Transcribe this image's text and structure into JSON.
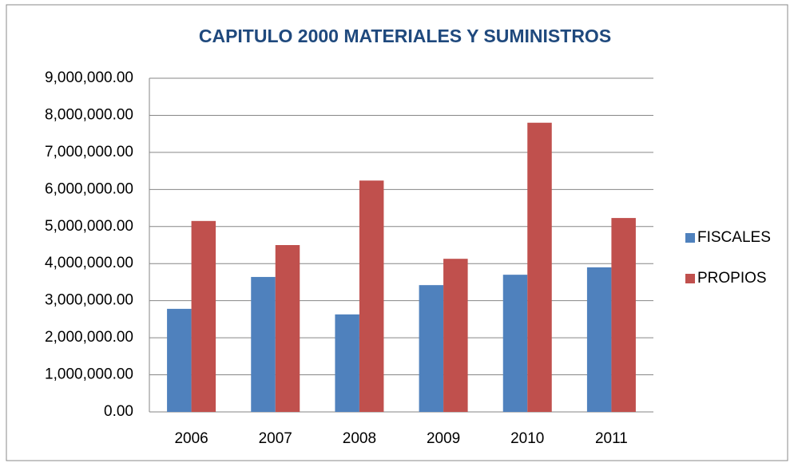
{
  "chart_data": {
    "type": "bar",
    "title": "CAPITULO 2000 MATERIALES Y SUMINISTROS",
    "categories": [
      "2006",
      "2007",
      "2008",
      "2009",
      "2010",
      "2011"
    ],
    "series": [
      {
        "name": "FISCALES",
        "color": "#4f81bd",
        "values": [
          2780000,
          3640000,
          2630000,
          3420000,
          3700000,
          3900000
        ]
      },
      {
        "name": "PROPIOS",
        "color": "#c0504d",
        "values": [
          5150000,
          4500000,
          6240000,
          4130000,
          7800000,
          5230000
        ]
      }
    ],
    "ylim": [
      0,
      9000000
    ],
    "yticks": [
      {
        "value": 0,
        "label": "0.00"
      },
      {
        "value": 1000000,
        "label": "1,000,000.00"
      },
      {
        "value": 2000000,
        "label": "2,000,000.00"
      },
      {
        "value": 3000000,
        "label": "3,000,000.00"
      },
      {
        "value": 4000000,
        "label": "4,000,000.00"
      },
      {
        "value": 5000000,
        "label": "5,000,000.00"
      },
      {
        "value": 6000000,
        "label": "6,000,000.00"
      },
      {
        "value": 7000000,
        "label": "7,000,000.00"
      },
      {
        "value": 8000000,
        "label": "8,000,000.00"
      },
      {
        "value": 9000000,
        "label": "9,000,000.00"
      }
    ],
    "grid": true,
    "legend": "right"
  }
}
